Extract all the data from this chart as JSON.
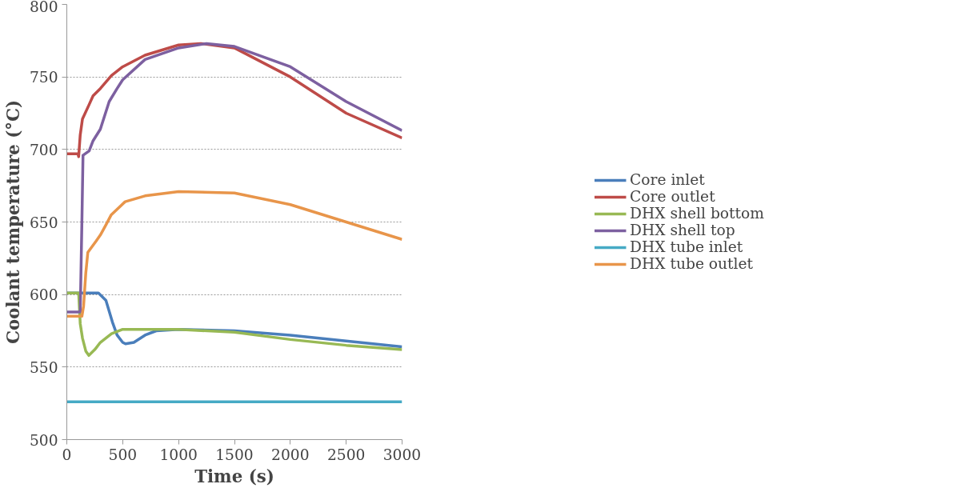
{
  "chart_data": {
    "type": "line",
    "xlabel": "Time (s)",
    "ylabel": "Coolant temperature (°C)",
    "xlim": [
      0,
      3000
    ],
    "xticks": [
      0,
      500,
      1000,
      1500,
      2000,
      2500,
      3000
    ],
    "ylim": [
      500,
      800
    ],
    "yticks": [
      500,
      550,
      600,
      650,
      700,
      750,
      800
    ],
    "grid": "y",
    "legend": "right",
    "marker": "none",
    "line_style": "solid",
    "series": [
      {
        "name": "Core inlet",
        "color": "#4a7ebb",
        "x": [
          0,
          100,
          200,
          283,
          350,
          408,
          450,
          500,
          525,
          600,
          700,
          800,
          1000,
          1500,
          2000,
          2500,
          3000
        ],
        "values": [
          601,
          601,
          601,
          601,
          596,
          581,
          572,
          567,
          566,
          567,
          572,
          575,
          576,
          575,
          572,
          568,
          564
        ]
      },
      {
        "name": "Core outlet",
        "color": "#be4b48",
        "x": [
          0,
          100,
          106,
          120,
          140,
          200,
          235,
          300,
          400,
          500,
          700,
          1000,
          1200,
          1500,
          2000,
          2500,
          3000
        ],
        "values": [
          697,
          697,
          695,
          710,
          721,
          731,
          737,
          742,
          751,
          757,
          765,
          772,
          773,
          770,
          750,
          725,
          708
        ]
      },
      {
        "name": "DHX shell bottom",
        "color": "#98b954",
        "x": [
          0,
          106,
          120,
          140,
          170,
          197,
          250,
          300,
          400,
          500,
          1000,
          1500,
          2000,
          2500,
          3000
        ],
        "values": [
          601,
          601,
          580,
          570,
          561,
          558,
          562,
          567,
          573,
          576,
          576,
          574,
          569,
          565,
          562
        ]
      },
      {
        "name": "DHX shell top",
        "color": "#7d60a0",
        "x": [
          0,
          120,
          135,
          145,
          200,
          235,
          300,
          379,
          450,
          500,
          700,
          1000,
          1250,
          1500,
          2000,
          2500,
          3000
        ],
        "values": [
          588,
          588,
          650,
          696,
          699,
          706,
          714,
          733,
          742,
          748,
          762,
          770,
          773,
          771,
          757,
          733,
          713
        ]
      },
      {
        "name": "DHX tube inlet",
        "color": "#46aac5",
        "x": [
          0,
          3000
        ],
        "values": [
          526,
          526
        ]
      },
      {
        "name": "DHX tube outlet",
        "color": "#e8954a",
        "x": [
          0,
          135,
          150,
          170,
          188,
          264,
          300,
          350,
          398,
          522,
          700,
          1000,
          1500,
          2000,
          2500,
          3000
        ],
        "values": [
          585,
          585,
          592,
          615,
          629,
          637,
          641,
          648,
          655,
          664,
          668,
          671,
          670,
          662,
          650,
          638
        ]
      }
    ]
  }
}
